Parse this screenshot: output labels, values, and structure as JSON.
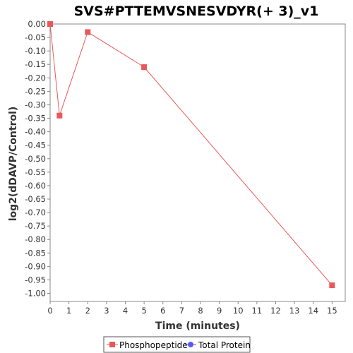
{
  "chart_data": {
    "type": "line",
    "title": "SVS#PTTEMVSNESVDYR(+ 3)_v1",
    "xlabel": "Time (minutes)",
    "ylabel": "log2(dDAVP/Control)",
    "xlim": [
      0,
      15.7
    ],
    "ylim": [
      -1.03,
      0
    ],
    "x_ticks": [
      "0",
      "1",
      "2",
      "3",
      "4",
      "5",
      "6",
      "7",
      "8",
      "9",
      "10",
      "11",
      "12",
      "13",
      "14",
      "15"
    ],
    "y_ticks": [
      "0.00",
      "-0.05",
      "-0.10",
      "-0.15",
      "-0.20",
      "-0.25",
      "-0.30",
      "-0.35",
      "-0.40",
      "-0.45",
      "-0.50",
      "-0.55",
      "-0.60",
      "-0.65",
      "-0.70",
      "-0.75",
      "-0.80",
      "-0.85",
      "-0.90",
      "-0.95",
      "-1.00"
    ],
    "grid": false,
    "legend_position": "bottom",
    "series": [
      {
        "name": "Phosphopeptide",
        "color": "#e8585a",
        "marker": "square",
        "points": [
          {
            "x": 0,
            "y": 0.0
          },
          {
            "x": 0.5,
            "y": -0.34
          },
          {
            "x": 2,
            "y": -0.03
          },
          {
            "x": 5,
            "y": -0.16
          },
          {
            "x": 15,
            "y": -0.97
          }
        ]
      },
      {
        "name": "Total Protein",
        "color": "#5a5aee",
        "marker": "circle",
        "points": []
      }
    ]
  }
}
